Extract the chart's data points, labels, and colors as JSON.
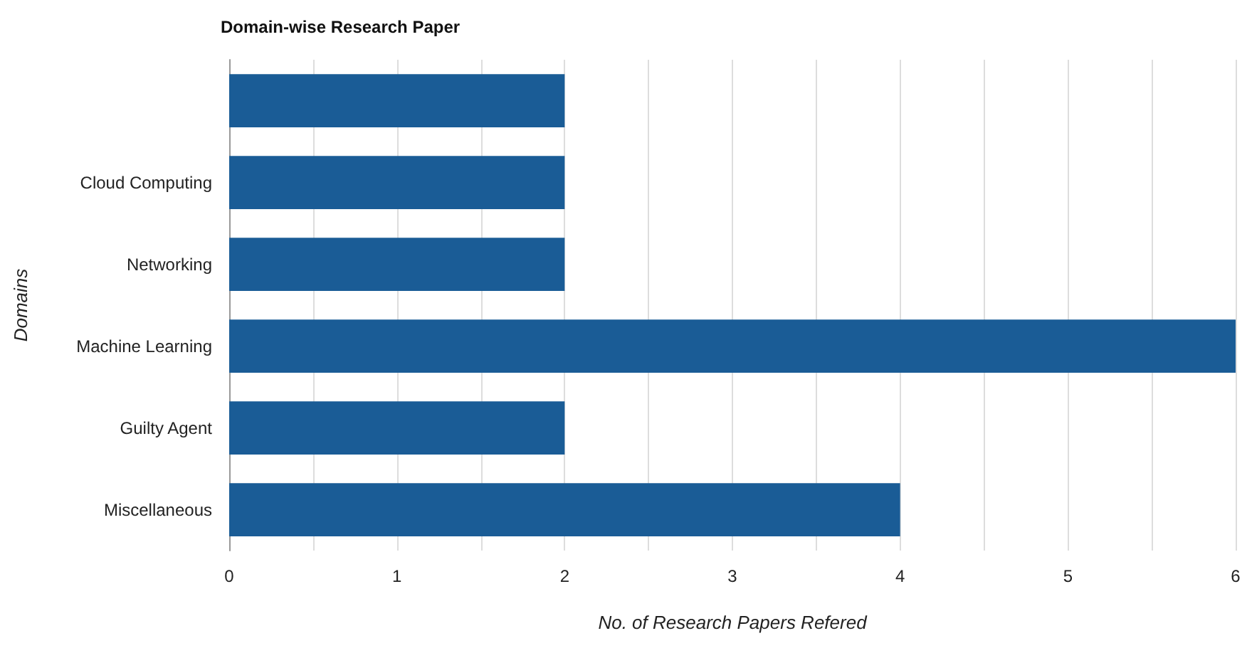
{
  "chart_data": {
    "type": "bar",
    "orientation": "horizontal",
    "title": "Domain-wise Research Paper",
    "xlabel": "No. of Research Papers Refered",
    "ylabel": "Domains",
    "categories": [
      null,
      "Cloud Computing",
      "Networking",
      "Machine Learning",
      "Guilty Agent",
      "Miscellaneous"
    ],
    "values": [
      2,
      2,
      2,
      6,
      2,
      4
    ],
    "color": "#1a5c96",
    "xlim": [
      0,
      6
    ],
    "xticks": [
      0,
      {
        "value": 0.5,
        "label": null
      },
      1,
      {
        "value": 1.5,
        "label": null
      },
      2,
      {
        "value": 2.5,
        "label": null
      },
      3,
      {
        "value": 3.5,
        "label": null
      },
      4,
      {
        "value": 4.5,
        "label": null
      },
      5,
      {
        "value": 5.5,
        "label": null
      },
      6
    ],
    "grid": "x"
  }
}
